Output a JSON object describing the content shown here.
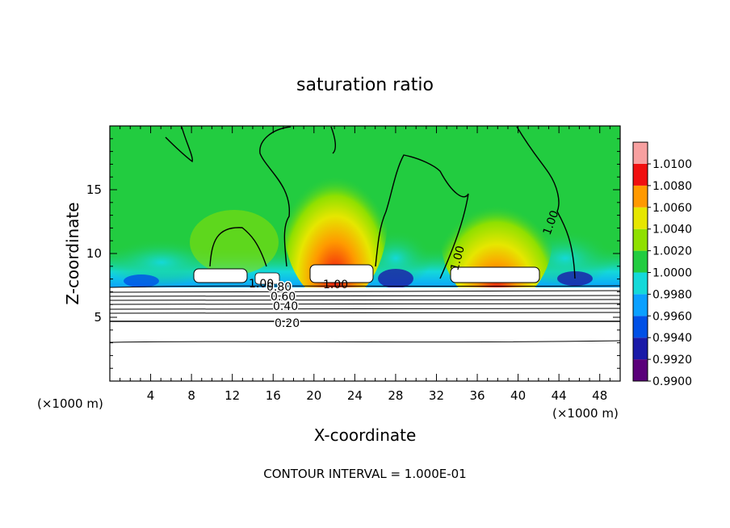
{
  "chart_data": {
    "type": "heatmap",
    "title": "saturation ratio",
    "xlabel": "X-coordinate",
    "ylabel": "Z-coordinate",
    "x_unit": "(×1000 m)",
    "y_unit": "(×1000 m)",
    "xlim": [
      0,
      50
    ],
    "ylim": [
      0,
      20
    ],
    "x_ticks": [
      "4",
      "8",
      "12",
      "16",
      "20",
      "24",
      "28",
      "32",
      "36",
      "40",
      "44",
      "48"
    ],
    "y_ticks": [
      "5",
      "10",
      "15"
    ],
    "colorbar": {
      "levels": [
        "0.9900",
        "0.9920",
        "0.9940",
        "0.9960",
        "0.9980",
        "1.0000",
        "1.0020",
        "1.0040",
        "1.0060",
        "1.0080",
        "1.0100"
      ],
      "colors": [
        "#5a007a",
        "#1a1aa8",
        "#0050e6",
        "#0aa0ff",
        "#14d9d9",
        "#22cc40",
        "#8fe000",
        "#e6e600",
        "#ff9900",
        "#f01010",
        "#f7a0a0"
      ]
    },
    "contour_labels": [
      "0.20",
      "0.40",
      "0.60",
      "0.80",
      "1.00",
      "1.00",
      "1.00",
      "1.00"
    ],
    "footer": "CONTOUR INTERVAL = 1.000E-01"
  }
}
